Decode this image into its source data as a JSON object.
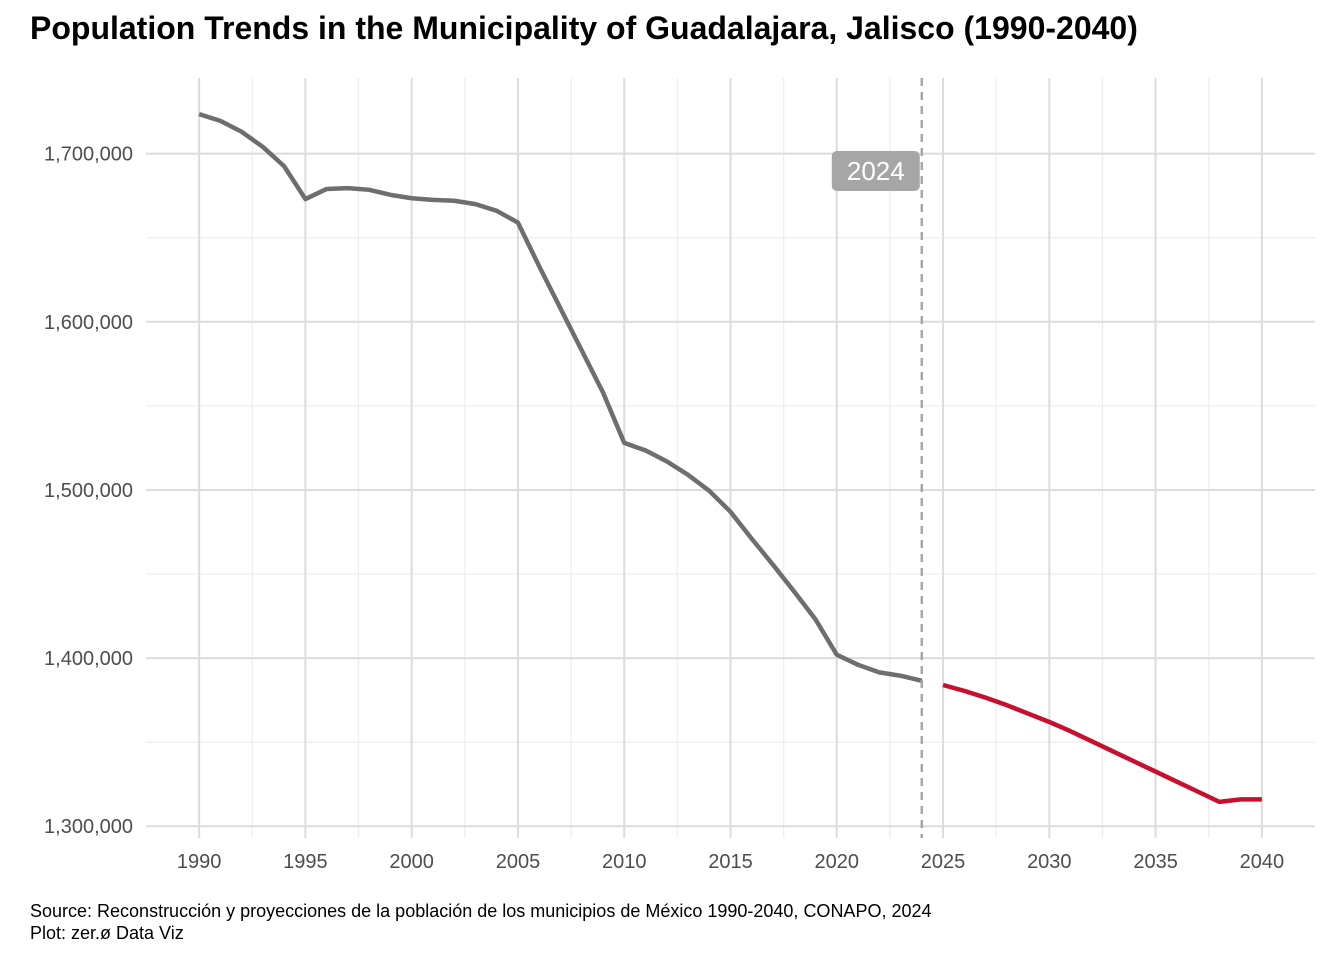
{
  "chart_data": {
    "type": "line",
    "title": "Population Trends in the Municipality of Guadalajara, Jalisco (1990-2040)",
    "xlabel": "",
    "ylabel": "",
    "xlim": [
      1987.5,
      2042.5
    ],
    "ylim": [
      1293000,
      1745000
    ],
    "x_ticks": [
      1990,
      1995,
      2000,
      2005,
      2010,
      2015,
      2020,
      2025,
      2030,
      2035,
      2040
    ],
    "x_tick_labels": [
      "1990",
      "1995",
      "2000",
      "2005",
      "2010",
      "2015",
      "2020",
      "2025",
      "2030",
      "2035",
      "2040"
    ],
    "y_ticks": [
      1300000,
      1400000,
      1500000,
      1600000,
      1700000
    ],
    "y_tick_labels": [
      "1,300,000",
      "1,400,000",
      "1,500,000",
      "1,600,000",
      "1,700,000"
    ],
    "grid": true,
    "legend": "none",
    "series": [
      {
        "color": "#6e6e6e",
        "x": [
          1990,
          1991,
          1992,
          1993,
          1994,
          1995,
          1996,
          1997,
          1998,
          1999,
          2000,
          2001,
          2002,
          2003,
          2004,
          2005,
          2006,
          2007,
          2008,
          2009,
          2010,
          2011,
          2012,
          2013,
          2014,
          2015,
          2016,
          2017,
          2018,
          2019,
          2020,
          2021,
          2022,
          2023,
          2024
        ],
        "y": [
          1723500,
          1719500,
          1713000,
          1704000,
          1692500,
          1673000,
          1679000,
          1679500,
          1678500,
          1675500,
          1673500,
          1672500,
          1672000,
          1670000,
          1666000,
          1659000,
          1633000,
          1608000,
          1583000,
          1558000,
          1528000,
          1523500,
          1517000,
          1509000,
          1499500,
          1487000,
          1471000,
          1455500,
          1439500,
          1423000,
          1402000,
          1396000,
          1391500,
          1389500,
          1386500
        ]
      },
      {
        "color": "#c8102e",
        "x": [
          2025,
          2026,
          2027,
          2028,
          2029,
          2030,
          2031,
          2032,
          2033,
          2034,
          2035,
          2036,
          2037,
          2038,
          2039,
          2040
        ],
        "y": [
          1384000,
          1380500,
          1376500,
          1372000,
          1367000,
          1362000,
          1356500,
          1350500,
          1344500,
          1338500,
          1332500,
          1326500,
          1320500,
          1314500,
          1316000,
          1316000
        ]
      }
    ],
    "annotations": [
      {
        "x": 2024,
        "type": "vline",
        "label": "2024",
        "color": "#a6a6a6"
      }
    ]
  },
  "caption": {
    "source": "Source: Reconstrucción y proyecciones de la población de los municipios de México 1990-2040, CONAPO, 2024",
    "credit": "Plot: zer.ø Data Viz"
  }
}
